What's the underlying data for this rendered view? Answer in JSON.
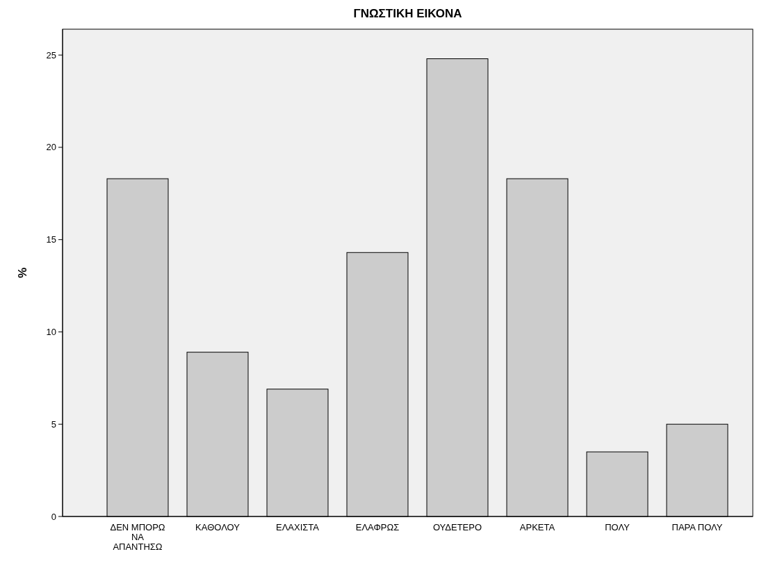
{
  "chart_data": {
    "type": "bar",
    "title": "ΓΝΩΣΤΙΚΗ ΕΙΚΟΝΑ",
    "ylabel": "%",
    "categories": [
      "ΔΕΝ ΜΠΟΡΩ ΝΑ ΑΠΑΝΤΗΣΩ",
      "ΚΑΘΟΛΟΥ",
      "ΕΛΑΧΙΣΤΑ",
      "ΕΛΑΦΡΩΣ",
      "ΟΥΔΕΤΕΡΟ",
      "ΑΡΚΕΤΑ",
      "ΠΟΛΥ",
      "ΠΑΡΑ ΠΟΛΥ"
    ],
    "values": [
      18.3,
      8.9,
      6.9,
      14.3,
      24.8,
      18.3,
      3.5,
      5.0
    ],
    "color": "#cccccc",
    "ylim": [
      0,
      26.4
    ],
    "yticks": [
      0,
      5,
      10,
      15,
      20,
      25
    ],
    "grid": false
  }
}
